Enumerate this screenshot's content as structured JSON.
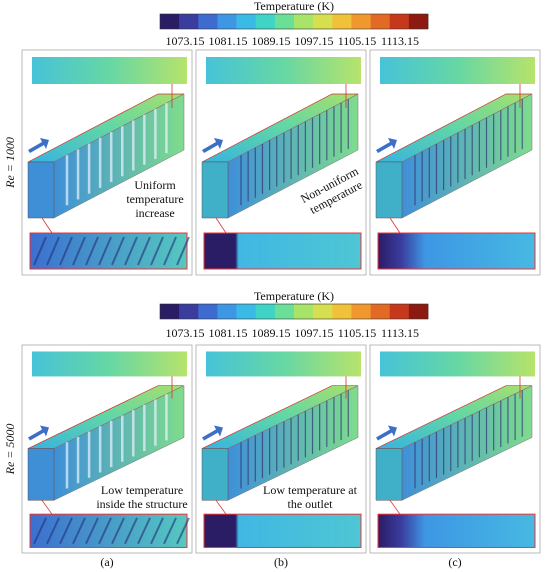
{
  "colorbars": [
    {
      "title": "Temperature (K)",
      "ticks": [
        1073.15,
        1081.15,
        1089.15,
        1097.15,
        1105.15,
        1113.15
      ],
      "lim": [
        1073.15,
        1113.15
      ],
      "colors": [
        "#2b1c66",
        "#3a3d9e",
        "#3e6bcf",
        "#3e97e4",
        "#39bbe6",
        "#3fd4c6",
        "#6bdf98",
        "#a8e46a",
        "#d6df4f",
        "#f0c23a",
        "#f0982e",
        "#e26a25",
        "#c6381c",
        "#8c1a10"
      ]
    },
    {
      "title": "Temperature (K)",
      "ticks": [
        1073.15,
        1081.15,
        1089.15,
        1097.15,
        1105.15,
        1113.15
      ],
      "lim": [
        1073.15,
        1113.15
      ],
      "colors": [
        "#2b1c66",
        "#3a3d9e",
        "#3e6bcf",
        "#3e97e4",
        "#39bbe6",
        "#3fd4c6",
        "#6bdf98",
        "#a8e46a",
        "#d6df4f",
        "#f0c23a",
        "#f0982e",
        "#e26a25",
        "#c6381c",
        "#8c1a10"
      ]
    }
  ],
  "rows": [
    {
      "label": "Re = 1000",
      "annotations": [
        {
          "lines": [
            "Uniform",
            "temperature",
            "increase"
          ]
        },
        {
          "lines": [
            "Non-uniform",
            "temperature"
          ]
        }
      ]
    },
    {
      "label": "Re = 5000",
      "annotations": [
        {
          "lines": [
            "Low temperature",
            "inside the structure"
          ]
        },
        {
          "lines": [
            "Low temperature at",
            "the outlet"
          ]
        }
      ]
    }
  ],
  "panel_labels": [
    "(a)",
    "(b)",
    "(c)"
  ]
}
